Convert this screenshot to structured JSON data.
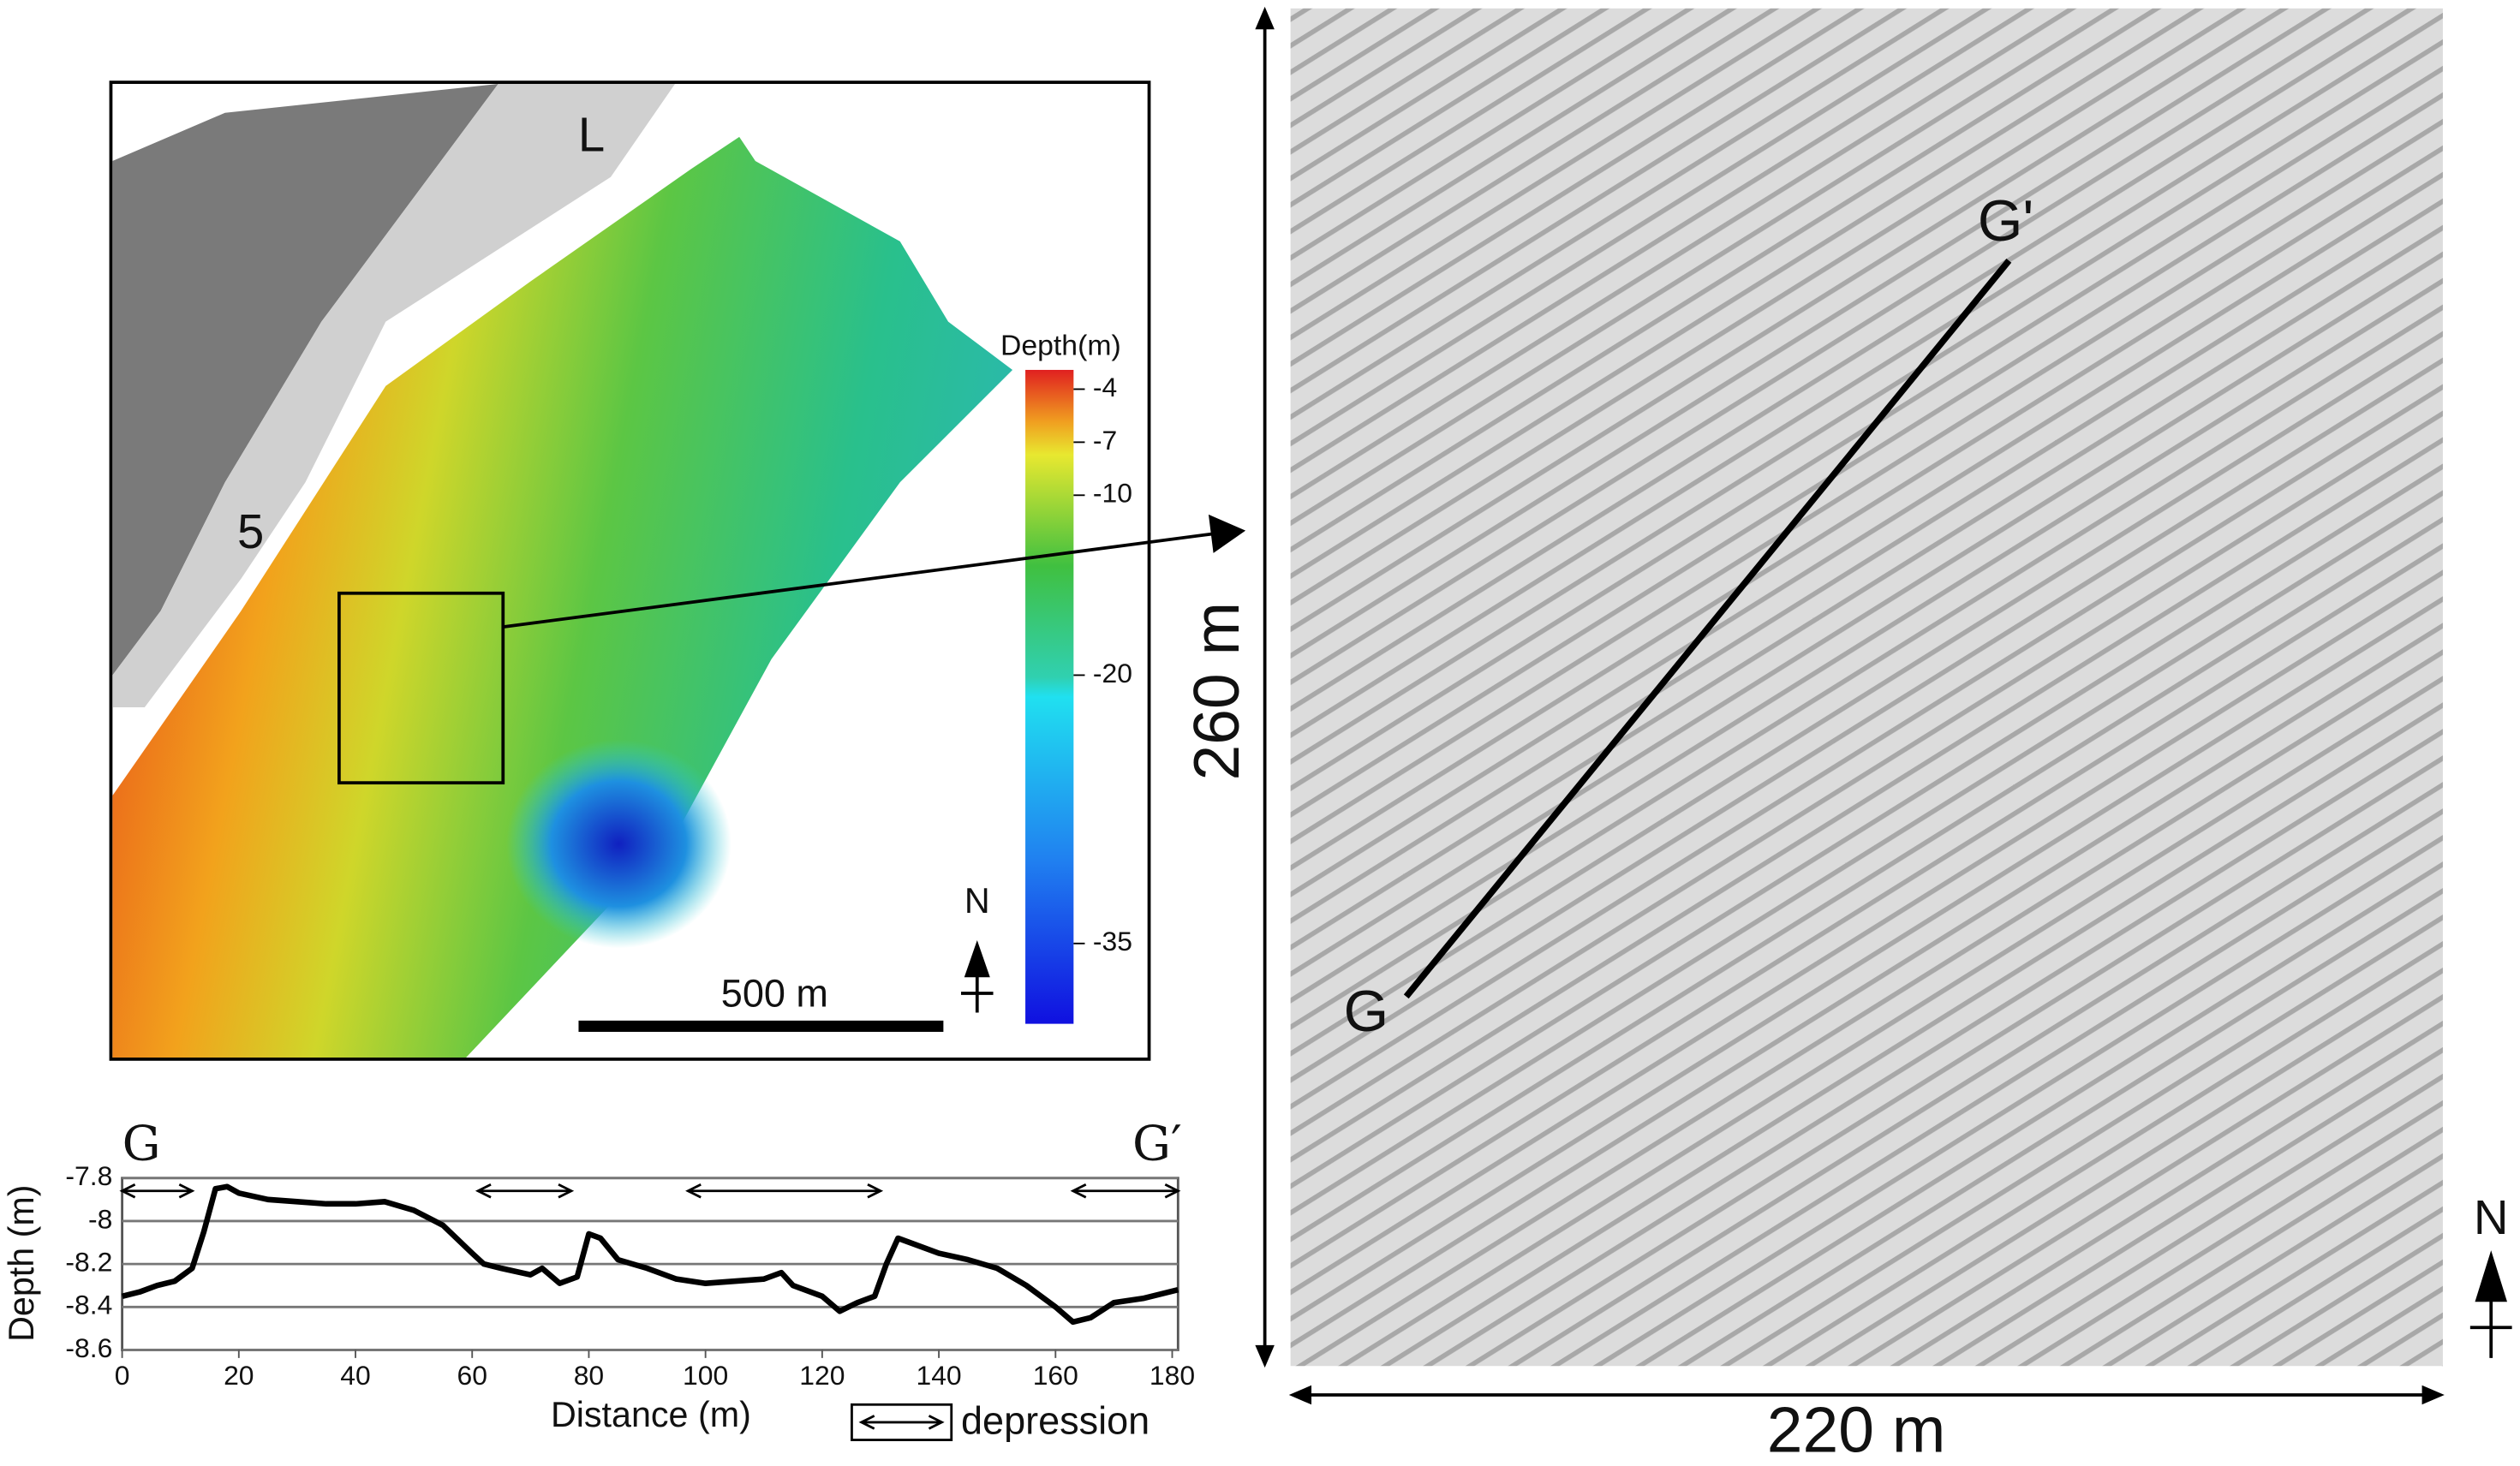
{
  "map": {
    "labels": [
      "L",
      "5"
    ],
    "scale_bar": "500 m",
    "colorbar_title": "Depth(m)",
    "colorbar_ticks": [
      -4,
      -7,
      -10,
      -20,
      -35
    ],
    "north": "N"
  },
  "detail": {
    "start": "G",
    "end": "G'",
    "height": "260 m",
    "width": "220 m",
    "north": "N"
  },
  "chart_data": {
    "type": "line",
    "start_label": "G",
    "end_label": "G′",
    "ylabel": "Depth (m)",
    "xlabel": "Distance (m)",
    "legend": "depression",
    "xlim": [
      0,
      181
    ],
    "ylim": [
      -8.6,
      -7.8
    ],
    "xticks": [
      0,
      20,
      40,
      60,
      80,
      100,
      120,
      140,
      160,
      180
    ],
    "yticks": [
      -7.8,
      -8,
      -8.2,
      -8.4,
      -8.6
    ],
    "grid": true,
    "color": "#000000",
    "depressions": [
      [
        0,
        12
      ],
      [
        61,
        77
      ],
      [
        97,
        130
      ],
      [
        163,
        181
      ]
    ],
    "x": [
      0,
      3,
      6,
      9,
      12,
      14,
      16,
      18,
      20,
      25,
      30,
      35,
      40,
      45,
      50,
      55,
      60,
      62,
      65,
      70,
      72,
      75,
      78,
      80,
      82,
      85,
      90,
      95,
      100,
      105,
      110,
      113,
      115,
      120,
      123,
      126,
      129,
      131,
      133,
      135,
      140,
      145,
      150,
      155,
      160,
      163,
      166,
      170,
      175,
      181
    ],
    "values": [
      -8.35,
      -8.33,
      -8.3,
      -8.28,
      -8.22,
      -8.05,
      -7.85,
      -7.84,
      -7.87,
      -7.9,
      -7.91,
      -7.92,
      -7.92,
      -7.91,
      -7.95,
      -8.02,
      -8.15,
      -8.2,
      -8.22,
      -8.25,
      -8.22,
      -8.29,
      -8.26,
      -8.06,
      -8.08,
      -8.18,
      -8.22,
      -8.27,
      -8.29,
      -8.28,
      -8.27,
      -8.24,
      -8.3,
      -8.35,
      -8.42,
      -8.38,
      -8.35,
      -8.2,
      -8.08,
      -8.1,
      -8.15,
      -8.18,
      -8.22,
      -8.3,
      -8.4,
      -8.47,
      -8.45,
      -8.38,
      -8.36,
      -8.32
    ]
  }
}
